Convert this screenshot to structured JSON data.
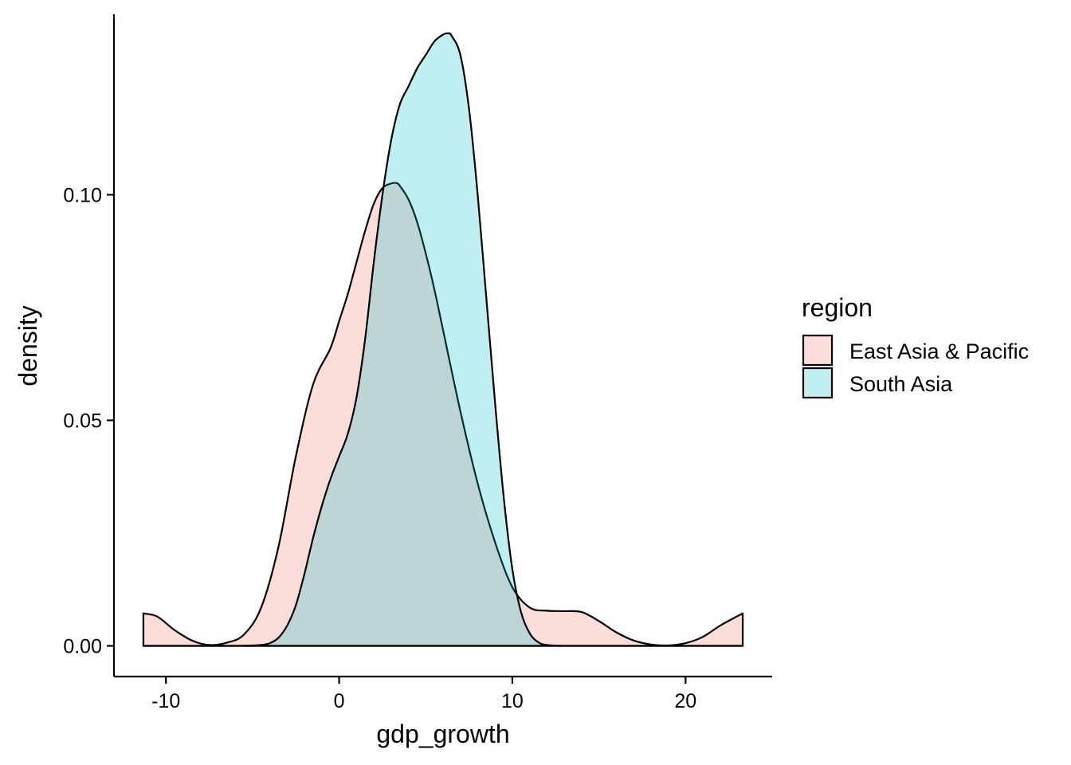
{
  "chart_data": {
    "type": "area",
    "subtype": "density",
    "title": "",
    "xlabel": "gdp_growth",
    "ylabel": "density",
    "xlim": [
      -13,
      25
    ],
    "ylim": [
      -0.0068,
      0.14
    ],
    "x_ticks": [
      {
        "value": -10,
        "label": "-10"
      },
      {
        "value": 0,
        "label": "0"
      },
      {
        "value": 10,
        "label": "10"
      },
      {
        "value": 20,
        "label": "20"
      }
    ],
    "y_ticks": [
      {
        "value": 0.0,
        "label": "0.00"
      },
      {
        "value": 0.05,
        "label": "0.05"
      },
      {
        "value": 0.1,
        "label": "0.10"
      }
    ],
    "grid": false,
    "legend": {
      "title": "region",
      "position": "right"
    },
    "series": [
      {
        "name": "East Asia & Pacific",
        "color": "#F8766D",
        "fill": "#F8766D",
        "fill_opacity": 0.25,
        "x": [
          -11.3,
          -10.5,
          -9.5,
          -8.5,
          -7.5,
          -6.5,
          -5.5,
          -4.5,
          -3.5,
          -2.5,
          -1.5,
          -0.5,
          0,
          0.5,
          1,
          1.5,
          2,
          2.5,
          3,
          3.3,
          3.5,
          4,
          4.5,
          5,
          5.5,
          6,
          7,
          8,
          9,
          10,
          11,
          12,
          13,
          14,
          15,
          16,
          17,
          18,
          19,
          20,
          21,
          22,
          23.3
        ],
        "y": [
          0.0072,
          0.0065,
          0.0035,
          0.0012,
          0.0002,
          0.0007,
          0.0025,
          0.0085,
          0.022,
          0.042,
          0.058,
          0.066,
          0.072,
          0.078,
          0.085,
          0.092,
          0.098,
          0.1015,
          0.1025,
          0.1026,
          0.102,
          0.099,
          0.094,
          0.087,
          0.079,
          0.07,
          0.052,
          0.036,
          0.023,
          0.013,
          0.0085,
          0.0078,
          0.0077,
          0.0075,
          0.0055,
          0.003,
          0.0012,
          0.0003,
          0.0001,
          0.0006,
          0.002,
          0.0045,
          0.0072
        ]
      },
      {
        "name": "South Asia",
        "color": "#00BFC4",
        "fill": "#00BFC4",
        "fill_opacity": 0.25,
        "x": [
          -11.3,
          -8,
          -6,
          -5,
          -4.5,
          -4,
          -3.5,
          -3,
          -2.5,
          -2,
          -1.5,
          -1,
          -0.5,
          0,
          0.5,
          1,
          1.5,
          2,
          2.5,
          3,
          3.5,
          4,
          4.5,
          5,
          5.5,
          6,
          6.3,
          6.5,
          7,
          7.5,
          8,
          8.5,
          9,
          9.5,
          10,
          10.5,
          11,
          11.5,
          12,
          13,
          15,
          18,
          23.3
        ],
        "y": [
          0,
          0,
          0,
          0.0001,
          0.0002,
          0.0006,
          0.0018,
          0.0045,
          0.009,
          0.016,
          0.024,
          0.031,
          0.037,
          0.042,
          0.047,
          0.055,
          0.068,
          0.085,
          0.1,
          0.112,
          0.12,
          0.124,
          0.128,
          0.131,
          0.134,
          0.1355,
          0.1358,
          0.1352,
          0.131,
          0.119,
          0.1,
          0.077,
          0.054,
          0.033,
          0.017,
          0.0075,
          0.0028,
          0.0008,
          0.0002,
          0,
          0,
          0,
          0
        ]
      }
    ]
  }
}
